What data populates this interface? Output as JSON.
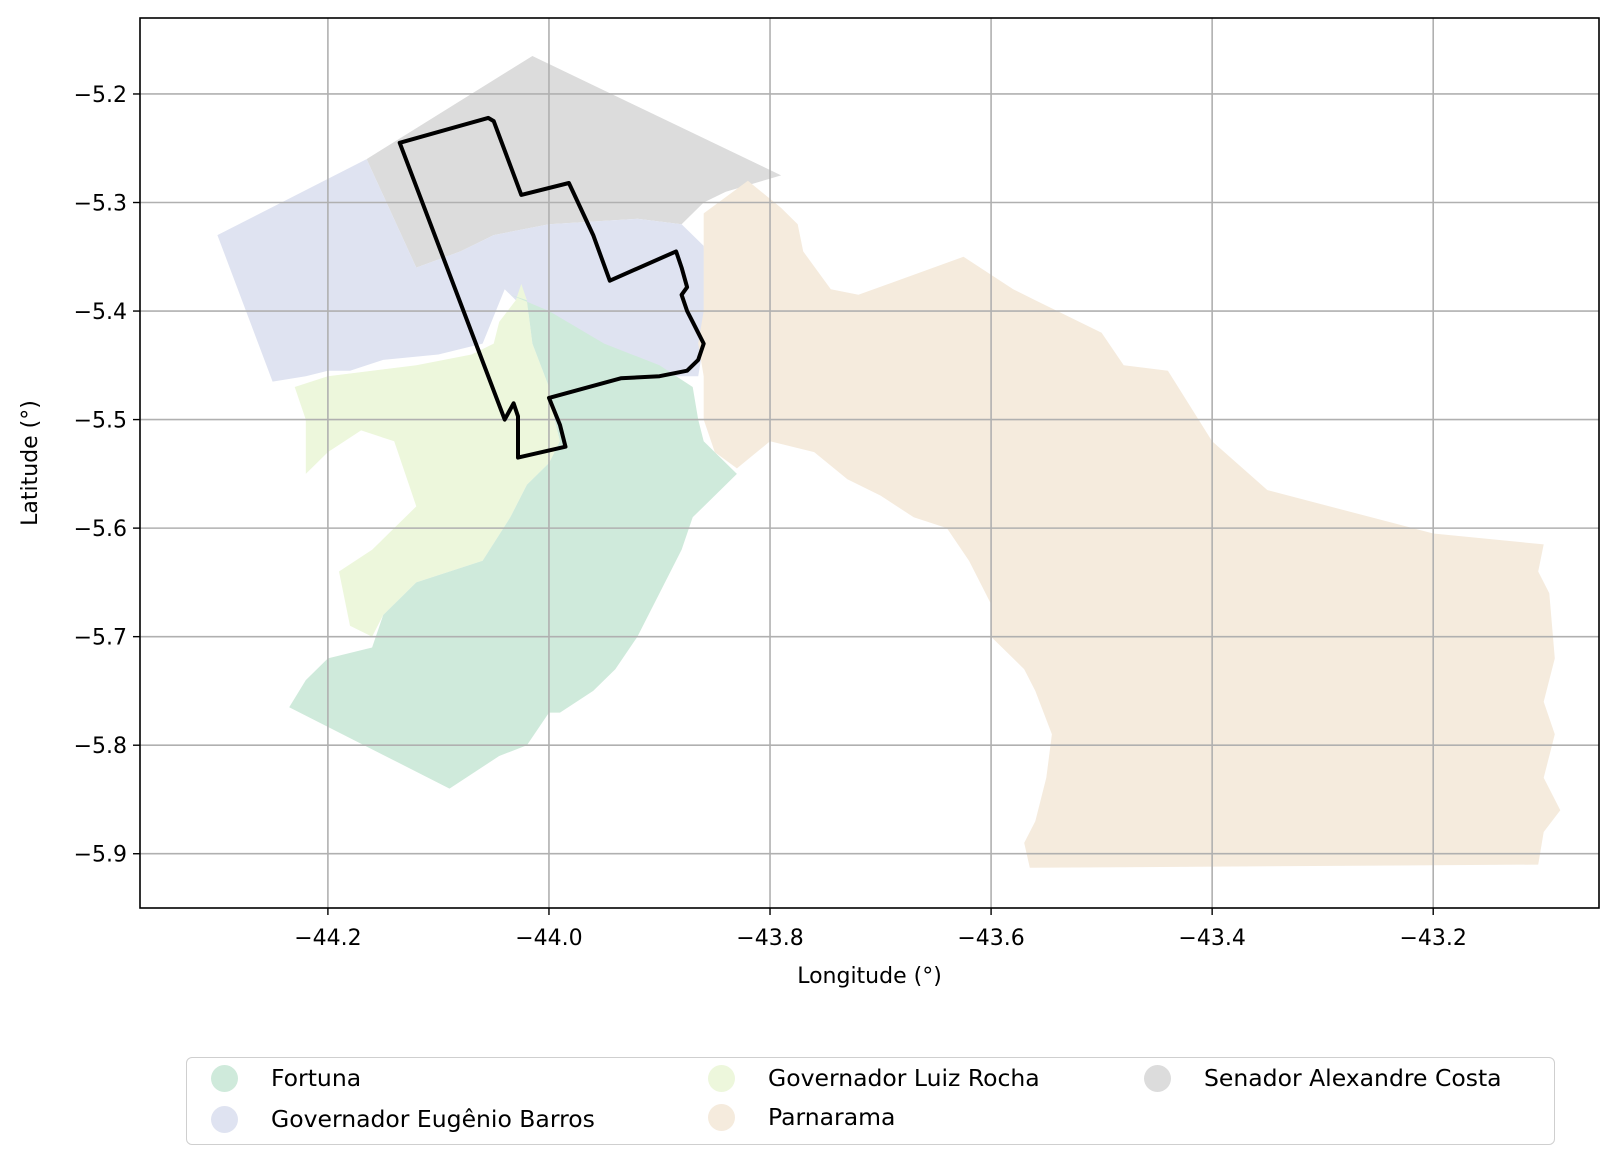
{
  "chart_data": {
    "type": "map",
    "xlabel": "Longitude (°)",
    "ylabel": "Latitude (°)",
    "xlim": [
      -44.37,
      -43.05
    ],
    "ylim": [
      -5.95,
      -5.13
    ],
    "xticks": [
      -44.2,
      -44.0,
      -43.8,
      -43.6,
      -43.4,
      -43.2
    ],
    "yticks": [
      -5.2,
      -5.3,
      -5.4,
      -5.5,
      -5.6,
      -5.7,
      -5.8,
      -5.9
    ],
    "xtick_labels": [
      "−44.2",
      "−44.0",
      "−43.8",
      "−43.6",
      "−43.4",
      "−43.2"
    ],
    "ytick_labels": [
      "−5.2",
      "−5.3",
      "−5.4",
      "−5.5",
      "−5.6",
      "−5.7",
      "−5.8",
      "−5.9"
    ],
    "grid": true,
    "legend_position": "bottom-center",
    "regions": [
      {
        "name": "Senador Alexandre Costa",
        "color": "#dcdcdc",
        "coords": [
          [
            -44.015,
            -5.165
          ],
          [
            -43.8,
            -5.27
          ],
          [
            -43.79,
            -5.275
          ],
          [
            -43.84,
            -5.29
          ],
          [
            -43.86,
            -5.3
          ],
          [
            -43.88,
            -5.32
          ],
          [
            -43.92,
            -5.315
          ],
          [
            -44.0,
            -5.32
          ],
          [
            -44.05,
            -5.33
          ],
          [
            -44.08,
            -5.345
          ],
          [
            -44.12,
            -5.36
          ],
          [
            -44.165,
            -5.26
          ]
        ]
      },
      {
        "name": "Governador Eugênio Barros",
        "color": "#dfe3f1",
        "coords": [
          [
            -44.3,
            -5.33
          ],
          [
            -44.165,
            -5.26
          ],
          [
            -44.12,
            -5.36
          ],
          [
            -44.08,
            -5.345
          ],
          [
            -44.05,
            -5.33
          ],
          [
            -44.0,
            -5.32
          ],
          [
            -43.92,
            -5.315
          ],
          [
            -43.88,
            -5.32
          ],
          [
            -43.86,
            -5.34
          ],
          [
            -43.855,
            -5.4
          ],
          [
            -43.86,
            -5.43
          ],
          [
            -43.865,
            -5.46
          ],
          [
            -43.91,
            -5.46
          ],
          [
            -43.97,
            -5.455
          ],
          [
            -44.0,
            -5.43
          ],
          [
            -44.02,
            -5.4
          ],
          [
            -44.04,
            -5.38
          ],
          [
            -44.06,
            -5.43
          ],
          [
            -44.1,
            -5.44
          ],
          [
            -44.15,
            -5.445
          ],
          [
            -44.18,
            -5.455
          ],
          [
            -44.2,
            -5.455
          ],
          [
            -44.22,
            -5.46
          ],
          [
            -44.25,
            -5.465
          ]
        ]
      },
      {
        "name": "Governador Luiz Rocha",
        "color": "#edf7dc",
        "coords": [
          [
            -44.23,
            -5.47
          ],
          [
            -44.2,
            -5.46
          ],
          [
            -44.16,
            -5.455
          ],
          [
            -44.12,
            -5.45
          ],
          [
            -44.07,
            -5.44
          ],
          [
            -44.05,
            -5.43
          ],
          [
            -44.045,
            -5.41
          ],
          [
            -44.03,
            -5.39
          ],
          [
            -44.025,
            -5.375
          ],
          [
            -44.02,
            -5.39
          ],
          [
            -44.015,
            -5.43
          ],
          [
            -44.0,
            -5.47
          ],
          [
            -43.995,
            -5.5
          ],
          [
            -43.99,
            -5.52
          ],
          [
            -44.0,
            -5.54
          ],
          [
            -44.02,
            -5.56
          ],
          [
            -44.035,
            -5.59
          ],
          [
            -44.06,
            -5.63
          ],
          [
            -44.12,
            -5.65
          ],
          [
            -44.15,
            -5.68
          ],
          [
            -44.16,
            -5.7
          ],
          [
            -44.18,
            -5.69
          ],
          [
            -44.19,
            -5.64
          ],
          [
            -44.16,
            -5.62
          ],
          [
            -44.12,
            -5.58
          ],
          [
            -44.14,
            -5.52
          ],
          [
            -44.17,
            -5.51
          ],
          [
            -44.2,
            -5.53
          ],
          [
            -44.22,
            -5.55
          ],
          [
            -44.22,
            -5.5
          ]
        ]
      },
      {
        "name": "Fortuna",
        "color": "#cfeadb",
        "coords": [
          [
            -44.035,
            -5.385
          ],
          [
            -44.0,
            -5.4
          ],
          [
            -43.95,
            -5.43
          ],
          [
            -43.9,
            -5.45
          ],
          [
            -43.87,
            -5.47
          ],
          [
            -43.865,
            -5.5
          ],
          [
            -43.86,
            -5.52
          ],
          [
            -43.84,
            -5.54
          ],
          [
            -43.83,
            -5.55
          ],
          [
            -43.85,
            -5.57
          ],
          [
            -43.87,
            -5.59
          ],
          [
            -43.88,
            -5.62
          ],
          [
            -43.9,
            -5.66
          ],
          [
            -43.92,
            -5.7
          ],
          [
            -43.94,
            -5.73
          ],
          [
            -43.96,
            -5.75
          ],
          [
            -43.99,
            -5.77
          ],
          [
            -44.0,
            -5.77
          ],
          [
            -44.02,
            -5.8
          ],
          [
            -44.045,
            -5.81
          ],
          [
            -44.09,
            -5.84
          ],
          [
            -44.235,
            -5.765
          ],
          [
            -44.22,
            -5.74
          ],
          [
            -44.2,
            -5.72
          ],
          [
            -44.16,
            -5.71
          ],
          [
            -44.15,
            -5.68
          ],
          [
            -44.12,
            -5.65
          ],
          [
            -44.06,
            -5.63
          ],
          [
            -44.035,
            -5.59
          ],
          [
            -44.02,
            -5.56
          ],
          [
            -44.0,
            -5.54
          ],
          [
            -43.99,
            -5.52
          ],
          [
            -43.995,
            -5.5
          ],
          [
            -44.0,
            -5.47
          ],
          [
            -44.015,
            -5.43
          ],
          [
            -44.02,
            -5.39
          ]
        ]
      },
      {
        "name": "Parnarama",
        "color": "#f5ebdd",
        "coords": [
          [
            -43.82,
            -5.28
          ],
          [
            -43.79,
            -5.305
          ],
          [
            -43.775,
            -5.32
          ],
          [
            -43.77,
            -5.345
          ],
          [
            -43.745,
            -5.38
          ],
          [
            -43.72,
            -5.385
          ],
          [
            -43.625,
            -5.35
          ],
          [
            -43.58,
            -5.38
          ],
          [
            -43.56,
            -5.39
          ],
          [
            -43.5,
            -5.42
          ],
          [
            -43.48,
            -5.45
          ],
          [
            -43.44,
            -5.455
          ],
          [
            -43.4,
            -5.52
          ],
          [
            -43.35,
            -5.565
          ],
          [
            -43.2,
            -5.605
          ],
          [
            -43.1,
            -5.615
          ],
          [
            -43.105,
            -5.64
          ],
          [
            -43.095,
            -5.66
          ],
          [
            -43.09,
            -5.72
          ],
          [
            -43.1,
            -5.76
          ],
          [
            -43.09,
            -5.79
          ],
          [
            -43.1,
            -5.83
          ],
          [
            -43.085,
            -5.86
          ],
          [
            -43.1,
            -5.88
          ],
          [
            -43.105,
            -5.91
          ],
          [
            -43.565,
            -5.913
          ],
          [
            -43.57,
            -5.89
          ],
          [
            -43.56,
            -5.87
          ],
          [
            -43.55,
            -5.83
          ],
          [
            -43.545,
            -5.79
          ],
          [
            -43.56,
            -5.75
          ],
          [
            -43.57,
            -5.73
          ],
          [
            -43.58,
            -5.72
          ],
          [
            -43.6,
            -5.7
          ],
          [
            -43.6,
            -5.67
          ],
          [
            -43.62,
            -5.63
          ],
          [
            -43.64,
            -5.6
          ],
          [
            -43.67,
            -5.59
          ],
          [
            -43.7,
            -5.57
          ],
          [
            -43.73,
            -5.555
          ],
          [
            -43.76,
            -5.53
          ],
          [
            -43.8,
            -5.52
          ],
          [
            -43.83,
            -5.545
          ],
          [
            -43.85,
            -5.53
          ],
          [
            -43.86,
            -5.5
          ],
          [
            -43.86,
            -5.46
          ],
          [
            -43.865,
            -5.43
          ],
          [
            -43.86,
            -5.4
          ],
          [
            -43.86,
            -5.34
          ],
          [
            -43.86,
            -5.31
          ]
        ]
      }
    ],
    "outline": {
      "color": "#000000",
      "coords": [
        [
          -44.135,
          -5.245
        ],
        [
          -44.055,
          -5.222
        ],
        [
          -44.05,
          -5.225
        ],
        [
          -44.025,
          -5.293
        ],
        [
          -43.982,
          -5.282
        ],
        [
          -43.96,
          -5.33
        ],
        [
          -43.945,
          -5.372
        ],
        [
          -43.885,
          -5.345
        ],
        [
          -43.88,
          -5.36
        ],
        [
          -43.875,
          -5.378
        ],
        [
          -43.88,
          -5.385
        ],
        [
          -43.875,
          -5.4
        ],
        [
          -43.87,
          -5.41
        ],
        [
          -43.865,
          -5.42
        ],
        [
          -43.86,
          -5.43
        ],
        [
          -43.865,
          -5.445
        ],
        [
          -43.875,
          -5.455
        ],
        [
          -43.9,
          -5.46
        ],
        [
          -43.935,
          -5.462
        ],
        [
          -44.0,
          -5.48
        ],
        [
          -43.99,
          -5.505
        ],
        [
          -43.985,
          -5.525
        ],
        [
          -44.028,
          -5.535
        ],
        [
          -44.028,
          -5.497
        ],
        [
          -44.032,
          -5.485
        ],
        [
          -44.04,
          -5.5
        ]
      ]
    }
  },
  "legend": {
    "items": [
      {
        "label": "Fortuna",
        "color": "#cfeadb"
      },
      {
        "label": "Governador Eugênio Barros",
        "color": "#dfe3f1"
      },
      {
        "label": "Governador Luiz Rocha",
        "color": "#edf7dc"
      },
      {
        "label": "Parnarama",
        "color": "#f5ebdd"
      },
      {
        "label": "Senador Alexandre Costa",
        "color": "#dcdcdc"
      }
    ]
  }
}
